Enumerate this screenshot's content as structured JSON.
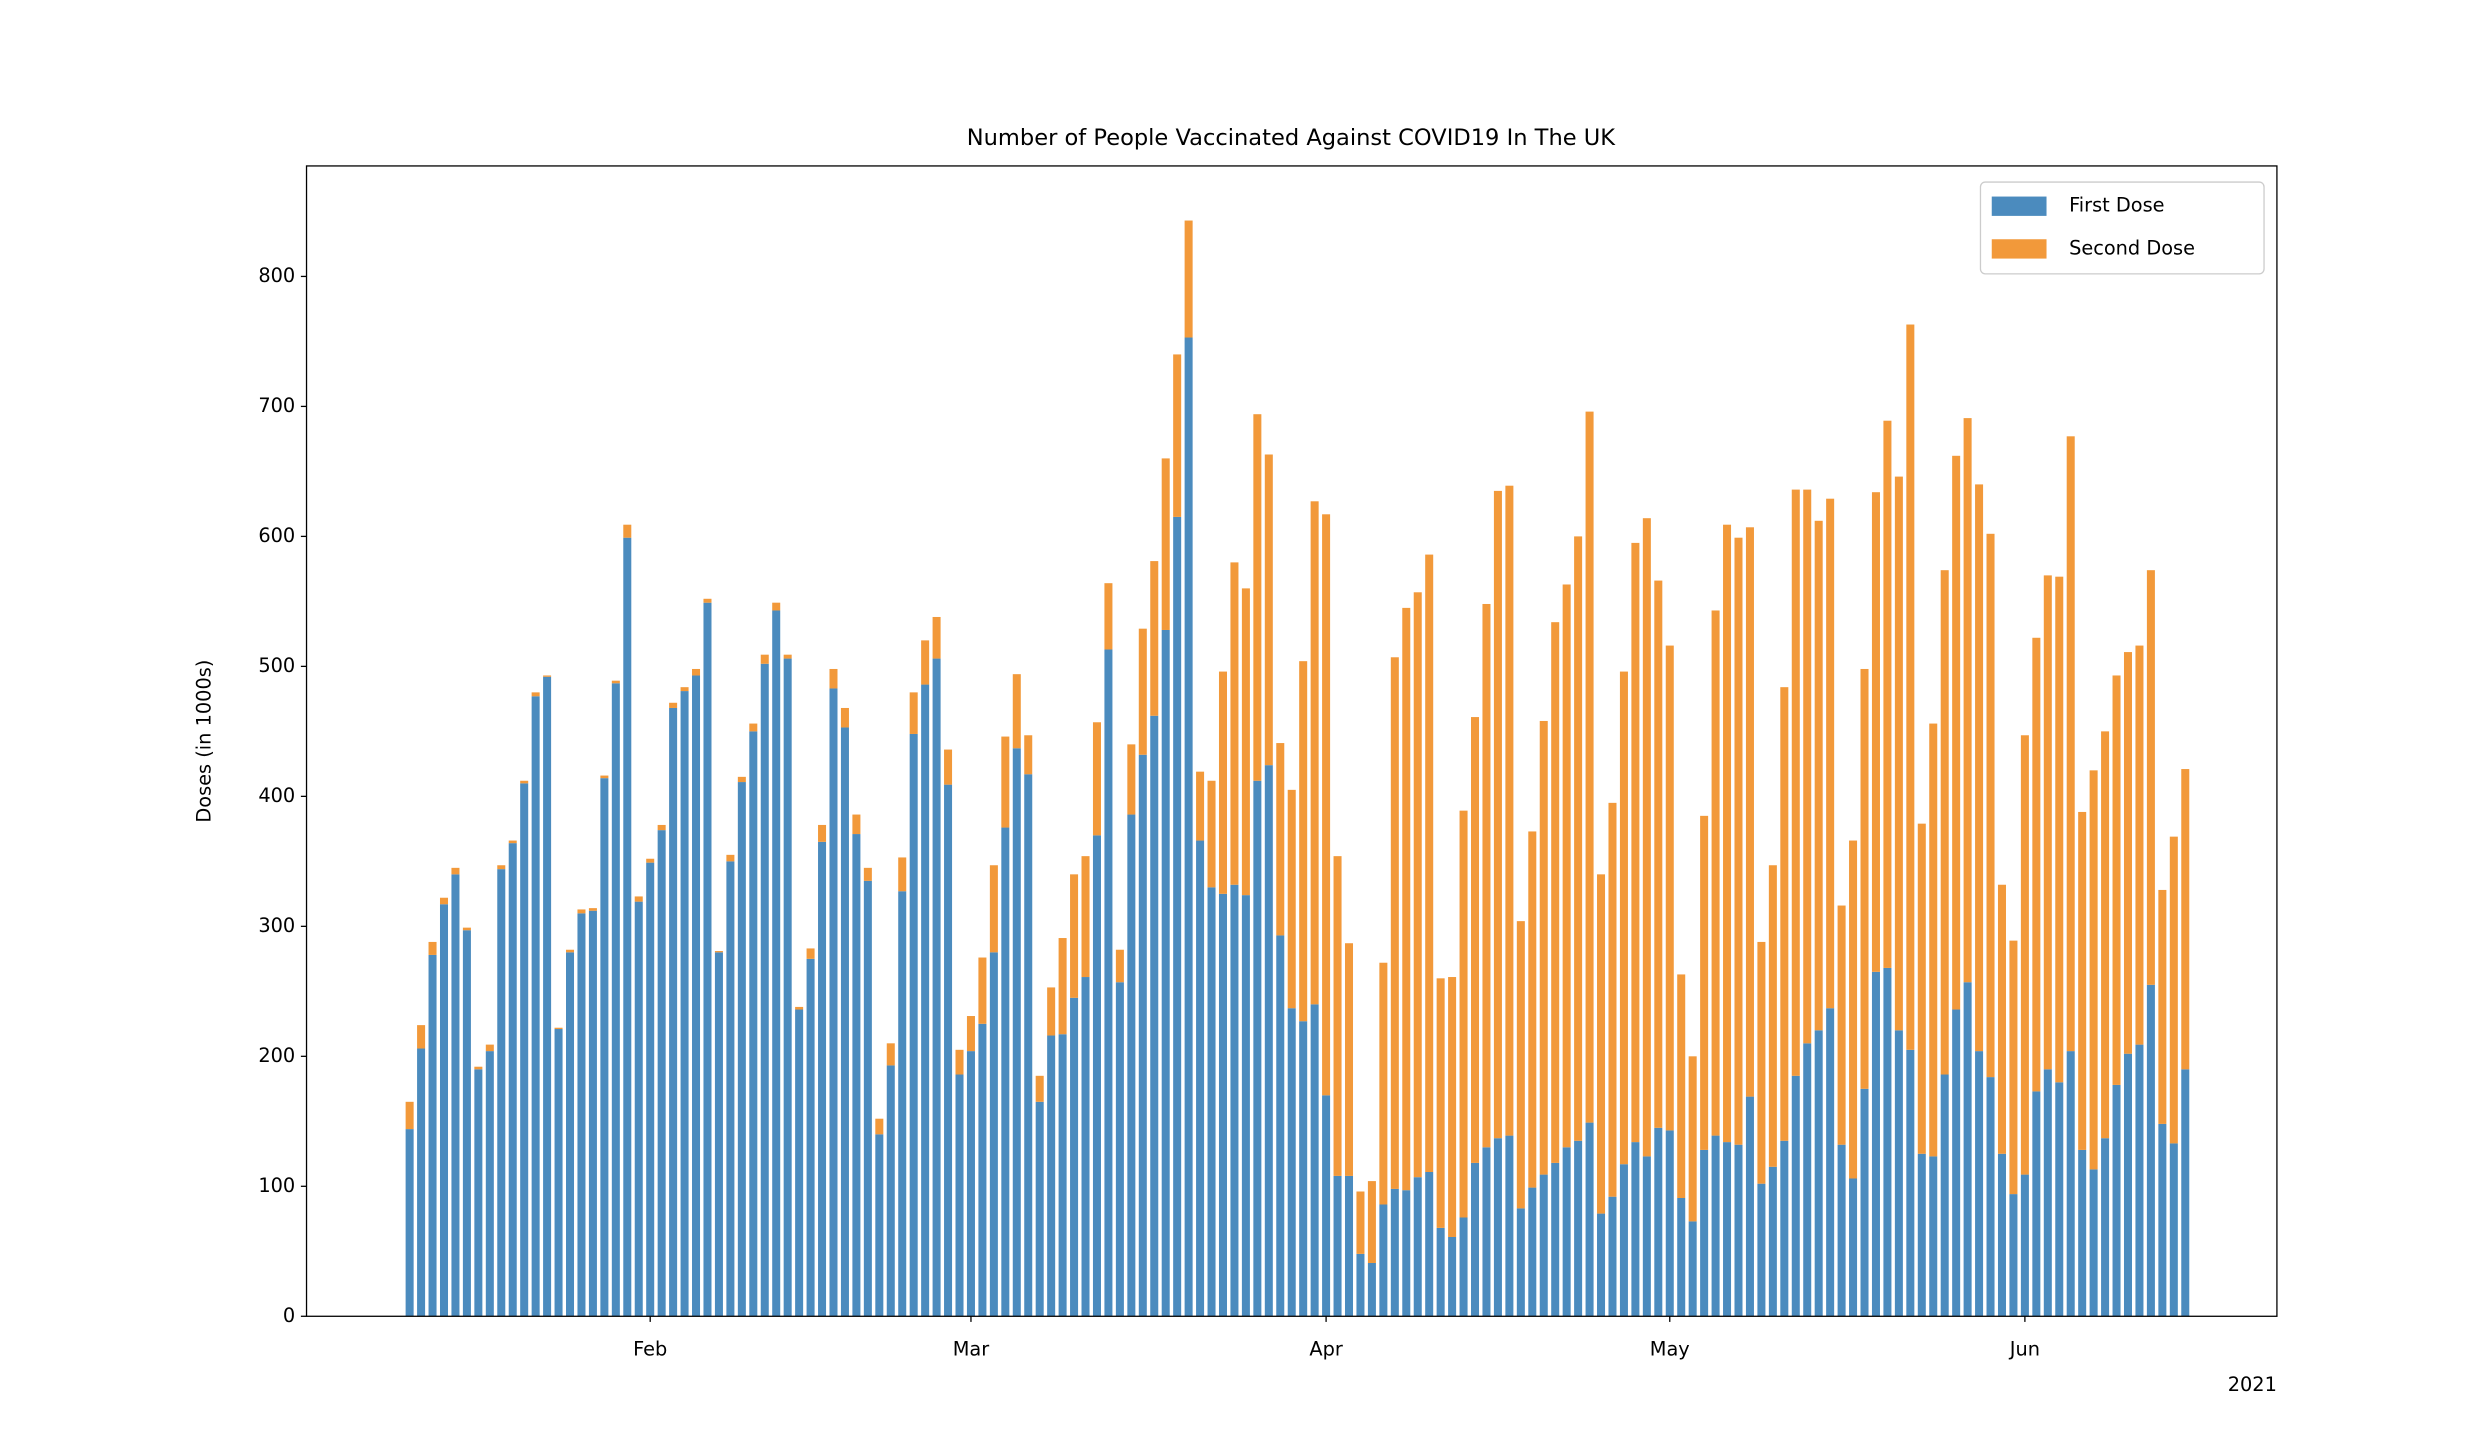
{
  "chart_data": {
    "type": "stacked_bar",
    "title": "Number of People Vaccinated Against COVID19 In The UK",
    "y_label": "Doses (in 1000s)",
    "x_offset_label": "2021",
    "x": [
      "2021-01-11",
      "2021-01-12",
      "2021-01-13",
      "2021-01-14",
      "2021-01-15",
      "2021-01-16",
      "2021-01-17",
      "2021-01-18",
      "2021-01-19",
      "2021-01-20",
      "2021-01-21",
      "2021-01-22",
      "2021-01-23",
      "2021-01-24",
      "2021-01-25",
      "2021-01-26",
      "2021-01-27",
      "2021-01-28",
      "2021-01-29",
      "2021-01-30",
      "2021-01-31",
      "2021-02-01",
      "2021-02-02",
      "2021-02-03",
      "2021-02-04",
      "2021-02-05",
      "2021-02-06",
      "2021-02-07",
      "2021-02-08",
      "2021-02-09",
      "2021-02-10",
      "2021-02-11",
      "2021-02-12",
      "2021-02-13",
      "2021-02-14",
      "2021-02-15",
      "2021-02-16",
      "2021-02-17",
      "2021-02-18",
      "2021-02-19",
      "2021-02-20",
      "2021-02-21",
      "2021-02-22",
      "2021-02-23",
      "2021-02-24",
      "2021-02-25",
      "2021-02-26",
      "2021-02-27",
      "2021-02-28",
      "2021-03-01",
      "2021-03-02",
      "2021-03-03",
      "2021-03-04",
      "2021-03-05",
      "2021-03-06",
      "2021-03-07",
      "2021-03-08",
      "2021-03-09",
      "2021-03-10",
      "2021-03-11",
      "2021-03-12",
      "2021-03-13",
      "2021-03-14",
      "2021-03-15",
      "2021-03-16",
      "2021-03-17",
      "2021-03-18",
      "2021-03-19",
      "2021-03-20",
      "2021-03-21",
      "2021-03-22",
      "2021-03-23",
      "2021-03-24",
      "2021-03-25",
      "2021-03-26",
      "2021-03-27",
      "2021-03-28",
      "2021-03-29",
      "2021-03-30",
      "2021-03-31",
      "2021-04-01",
      "2021-04-02",
      "2021-04-03",
      "2021-04-04",
      "2021-04-05",
      "2021-04-06",
      "2021-04-07",
      "2021-04-08",
      "2021-04-09",
      "2021-04-10",
      "2021-04-11",
      "2021-04-12",
      "2021-04-13",
      "2021-04-14",
      "2021-04-15",
      "2021-04-16",
      "2021-04-17",
      "2021-04-18",
      "2021-04-19",
      "2021-04-20",
      "2021-04-21",
      "2021-04-22",
      "2021-04-23",
      "2021-04-24",
      "2021-04-25",
      "2021-04-26",
      "2021-04-27",
      "2021-04-28",
      "2021-04-29",
      "2021-04-30",
      "2021-05-01",
      "2021-05-02",
      "2021-05-03",
      "2021-05-04",
      "2021-05-05",
      "2021-05-06",
      "2021-05-07",
      "2021-05-08",
      "2021-05-09",
      "2021-05-10",
      "2021-05-11",
      "2021-05-12",
      "2021-05-13",
      "2021-05-14",
      "2021-05-15",
      "2021-05-16",
      "2021-05-17",
      "2021-05-18",
      "2021-05-19",
      "2021-05-20",
      "2021-05-21",
      "2021-05-22",
      "2021-05-23",
      "2021-05-24",
      "2021-05-25",
      "2021-05-26",
      "2021-05-27",
      "2021-05-28",
      "2021-05-29",
      "2021-05-30",
      "2021-05-31",
      "2021-06-01",
      "2021-06-02",
      "2021-06-03",
      "2021-06-04",
      "2021-06-05",
      "2021-06-06",
      "2021-06-07",
      "2021-06-08",
      "2021-06-09",
      "2021-06-10",
      "2021-06-11",
      "2021-06-12",
      "2021-06-13",
      "2021-06-14",
      "2021-06-15"
    ],
    "series": [
      {
        "name": "First Dose",
        "color": "#4b8bbe",
        "values": [
          144,
          206,
          278,
          317,
          340,
          297,
          190,
          204,
          344,
          364,
          410,
          477,
          492,
          221,
          280,
          310,
          312,
          414,
          487,
          599,
          319,
          349,
          374,
          468,
          481,
          493,
          549,
          280,
          350,
          411,
          450,
          502,
          543,
          506,
          236,
          275,
          365,
          483,
          453,
          371,
          335,
          140,
          193,
          327,
          448,
          486,
          506,
          409,
          186,
          204,
          225,
          280,
          376,
          437,
          417,
          165,
          216,
          217,
          245,
          261,
          370,
          513,
          257,
          386,
          432,
          462,
          528,
          615,
          753,
          366,
          330,
          325,
          332,
          324,
          412,
          424,
          293,
          237,
          227,
          240,
          170,
          108,
          108,
          48,
          41,
          86,
          98,
          97,
          107,
          111,
          68,
          61,
          76,
          118,
          130,
          137,
          139,
          83,
          99,
          109,
          118,
          130,
          135,
          149,
          79,
          92,
          117,
          134,
          123,
          145,
          143,
          91,
          73,
          128,
          139,
          134,
          132,
          169,
          102,
          115,
          135,
          185,
          210,
          220,
          237,
          132,
          106,
          175,
          265,
          268,
          220,
          205,
          125,
          123,
          186,
          236,
          257,
          204,
          184,
          125,
          94,
          109,
          173,
          190,
          180,
          204,
          128,
          113,
          137,
          178,
          202,
          209,
          255,
          148,
          133,
          190
        ]
      },
      {
        "name": "Second Dose",
        "color": "#f2993a",
        "values": [
          21,
          18,
          10,
          5,
          5,
          2,
          2,
          5,
          3,
          2,
          2,
          3,
          1,
          1,
          2,
          3,
          2,
          2,
          2,
          10,
          4,
          3,
          4,
          4,
          3,
          5,
          3,
          1,
          5,
          4,
          6,
          7,
          6,
          3,
          2,
          8,
          13,
          15,
          15,
          15,
          10,
          12,
          17,
          26,
          32,
          34,
          32,
          27,
          19,
          27,
          51,
          67,
          70,
          57,
          30,
          20,
          37,
          74,
          95,
          93,
          87,
          51,
          25,
          54,
          97,
          119,
          132,
          125,
          90,
          53,
          82,
          171,
          248,
          236,
          282,
          239,
          148,
          168,
          277,
          387,
          447,
          246,
          179,
          48,
          63,
          186,
          409,
          448,
          450,
          475,
          192,
          200,
          313,
          343,
          418,
          498,
          500,
          221,
          274,
          349,
          416,
          433,
          465,
          547,
          261,
          303,
          379,
          461,
          491,
          421,
          373,
          172,
          127,
          257,
          404,
          475,
          467,
          438,
          186,
          232,
          349,
          451,
          426,
          392,
          392,
          184,
          260,
          323,
          369,
          421,
          426,
          558,
          254,
          333,
          388,
          426,
          434,
          436,
          418,
          207,
          195,
          338,
          349,
          380,
          389,
          473,
          260,
          307,
          313,
          315,
          309,
          307,
          319,
          180,
          236,
          231
        ]
      }
    ],
    "xlim": [
      "2021-01-02",
      "2021-06-23"
    ],
    "xticks": [
      {
        "value": "2021-02-01",
        "label": "Feb"
      },
      {
        "value": "2021-03-01",
        "label": "Mar"
      },
      {
        "value": "2021-04-01",
        "label": "Apr"
      },
      {
        "value": "2021-05-01",
        "label": "May"
      },
      {
        "value": "2021-06-01",
        "label": "Jun"
      }
    ],
    "ylim": [
      0,
      885
    ],
    "yticks": [
      0,
      100,
      200,
      300,
      400,
      500,
      600,
      700,
      800
    ],
    "legend": "upper right"
  }
}
